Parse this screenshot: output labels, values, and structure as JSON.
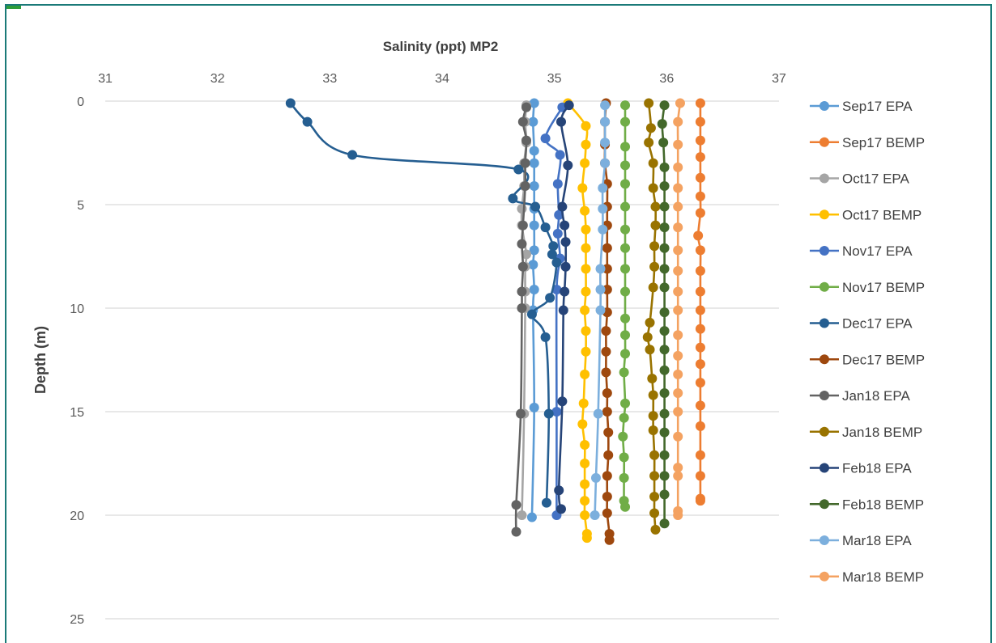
{
  "chart_data": {
    "type": "line",
    "title": "Salinity (ppt) MP2",
    "xlabel": "",
    "ylabel": "Depth (m)",
    "xlim": [
      31,
      37
    ],
    "ylim": [
      0,
      25
    ],
    "y_inverted": true,
    "x_axis_position": "top",
    "x_ticks": [
      "31",
      "32",
      "33",
      "34",
      "35",
      "36",
      "37"
    ],
    "y_ticks": [
      "0",
      "5",
      "10",
      "15",
      "20",
      "25"
    ],
    "grid": "horizontal",
    "legend_position": "right",
    "series": [
      {
        "name": "Sep17 EPA",
        "color": "#5b9bd5",
        "points": [
          [
            34.82,
            0.1
          ],
          [
            34.81,
            1.0
          ],
          [
            34.82,
            2.4
          ],
          [
            34.82,
            3.0
          ],
          [
            34.82,
            4.1
          ],
          [
            34.82,
            5.2
          ],
          [
            34.82,
            6.0
          ],
          [
            34.82,
            7.2
          ],
          [
            34.81,
            7.9
          ],
          [
            34.82,
            9.1
          ],
          [
            34.81,
            10.1
          ],
          [
            34.82,
            14.8
          ],
          [
            34.8,
            20.1
          ]
        ]
      },
      {
        "name": "Sep17 BEMP",
        "color": "#ed7d31",
        "points": [
          [
            36.3,
            0.1
          ],
          [
            36.3,
            1.0
          ],
          [
            36.3,
            1.9
          ],
          [
            36.3,
            2.7
          ],
          [
            36.3,
            3.7
          ],
          [
            36.3,
            4.6
          ],
          [
            36.3,
            5.4
          ],
          [
            36.28,
            6.5
          ],
          [
            36.3,
            7.2
          ],
          [
            36.3,
            8.2
          ],
          [
            36.3,
            9.2
          ],
          [
            36.3,
            10.1
          ],
          [
            36.3,
            11.0
          ],
          [
            36.3,
            11.9
          ],
          [
            36.3,
            12.7
          ],
          [
            36.3,
            13.6
          ],
          [
            36.3,
            14.7
          ],
          [
            36.3,
            15.7
          ],
          [
            36.3,
            17.1
          ],
          [
            36.3,
            18.1
          ],
          [
            36.3,
            19.2
          ],
          [
            36.3,
            19.3
          ]
        ]
      },
      {
        "name": "Oct17 EPA",
        "color": "#a5a5a5",
        "points": [
          [
            34.75,
            0.2
          ],
          [
            34.74,
            1.0
          ],
          [
            34.75,
            2.0
          ],
          [
            34.73,
            3.0
          ],
          [
            34.73,
            4.1
          ],
          [
            34.71,
            5.2
          ],
          [
            34.71,
            6.0
          ],
          [
            34.75,
            7.4
          ],
          [
            34.74,
            8.0
          ],
          [
            34.74,
            9.2
          ],
          [
            34.74,
            10.0
          ],
          [
            34.73,
            15.1
          ],
          [
            34.71,
            20.0
          ]
        ]
      },
      {
        "name": "Oct17 BEMP",
        "color": "#ffc000",
        "points": [
          [
            35.12,
            0.1
          ],
          [
            35.28,
            1.2
          ],
          [
            35.28,
            2.1
          ],
          [
            35.27,
            3.0
          ],
          [
            35.25,
            4.2
          ],
          [
            35.27,
            5.3
          ],
          [
            35.28,
            6.2
          ],
          [
            35.28,
            7.1
          ],
          [
            35.28,
            8.1
          ],
          [
            35.28,
            9.2
          ],
          [
            35.27,
            10.1
          ],
          [
            35.28,
            11.1
          ],
          [
            35.28,
            12.1
          ],
          [
            35.27,
            13.2
          ],
          [
            35.26,
            14.6
          ],
          [
            35.25,
            15.6
          ],
          [
            35.27,
            16.6
          ],
          [
            35.27,
            17.5
          ],
          [
            35.27,
            18.5
          ],
          [
            35.27,
            19.3
          ],
          [
            35.27,
            20.0
          ],
          [
            35.29,
            20.9
          ],
          [
            35.29,
            21.1
          ]
        ]
      },
      {
        "name": "Nov17 EPA",
        "color": "#4472c4",
        "points": [
          [
            35.07,
            0.3
          ],
          [
            34.92,
            1.8
          ],
          [
            35.05,
            2.6
          ],
          [
            35.03,
            4.0
          ],
          [
            35.04,
            5.5
          ],
          [
            35.03,
            6.4
          ],
          [
            35.05,
            7.6
          ],
          [
            35.02,
            9.1
          ],
          [
            35.02,
            15.0
          ],
          [
            35.02,
            20.0
          ]
        ]
      },
      {
        "name": "Nov17 BEMP",
        "color": "#70ad47",
        "points": [
          [
            35.63,
            0.2
          ],
          [
            35.63,
            1.0
          ],
          [
            35.63,
            2.2
          ],
          [
            35.63,
            3.1
          ],
          [
            35.63,
            4.0
          ],
          [
            35.63,
            5.1
          ],
          [
            35.63,
            6.2
          ],
          [
            35.63,
            7.1
          ],
          [
            35.63,
            8.1
          ],
          [
            35.63,
            9.2
          ],
          [
            35.63,
            10.5
          ],
          [
            35.63,
            11.3
          ],
          [
            35.63,
            12.2
          ],
          [
            35.62,
            13.1
          ],
          [
            35.63,
            14.6
          ],
          [
            35.62,
            15.3
          ],
          [
            35.61,
            16.2
          ],
          [
            35.62,
            17.2
          ],
          [
            35.62,
            18.2
          ],
          [
            35.62,
            19.3
          ],
          [
            35.63,
            19.6
          ]
        ]
      },
      {
        "name": "Dec17 EPA",
        "color": "#255e91",
        "points": [
          [
            32.65,
            0.1
          ],
          [
            32.8,
            1.0
          ],
          [
            33.2,
            2.6
          ],
          [
            34.68,
            3.3
          ],
          [
            34.63,
            4.7
          ],
          [
            34.83,
            5.1
          ],
          [
            34.92,
            6.1
          ],
          [
            34.99,
            7.0
          ],
          [
            34.98,
            7.4
          ],
          [
            35.02,
            7.8
          ],
          [
            34.96,
            9.5
          ],
          [
            34.8,
            10.3
          ],
          [
            34.92,
            11.4
          ],
          [
            34.95,
            15.1
          ],
          [
            34.93,
            19.4
          ]
        ]
      },
      {
        "name": "Dec17 BEMP",
        "color": "#9e480e",
        "points": [
          [
            35.46,
            0.1
          ],
          [
            35.45,
            1.0
          ],
          [
            35.45,
            2.1
          ],
          [
            35.45,
            3.0
          ],
          [
            35.47,
            4.0
          ],
          [
            35.47,
            5.1
          ],
          [
            35.47,
            6.0
          ],
          [
            35.47,
            7.1
          ],
          [
            35.47,
            8.1
          ],
          [
            35.47,
            9.1
          ],
          [
            35.47,
            10.2
          ],
          [
            35.46,
            11.1
          ],
          [
            35.46,
            12.1
          ],
          [
            35.46,
            13.1
          ],
          [
            35.47,
            14.1
          ],
          [
            35.47,
            15.0
          ],
          [
            35.48,
            16.0
          ],
          [
            35.48,
            17.1
          ],
          [
            35.47,
            18.1
          ],
          [
            35.47,
            19.1
          ],
          [
            35.47,
            19.9
          ],
          [
            35.49,
            20.9
          ],
          [
            35.49,
            21.2
          ]
        ]
      },
      {
        "name": "Jan18 EPA",
        "color": "#636363",
        "points": [
          [
            34.75,
            0.3
          ],
          [
            34.72,
            1.0
          ],
          [
            34.75,
            1.9
          ],
          [
            34.74,
            3.0
          ],
          [
            34.74,
            4.1
          ],
          [
            34.72,
            6.0
          ],
          [
            34.71,
            6.9
          ],
          [
            34.72,
            8.0
          ],
          [
            34.71,
            9.2
          ],
          [
            34.71,
            10.0
          ],
          [
            34.7,
            15.1
          ],
          [
            34.66,
            19.5
          ],
          [
            34.66,
            20.8
          ]
        ]
      },
      {
        "name": "Jan18 BEMP",
        "color": "#997300",
        "points": [
          [
            35.84,
            0.1
          ],
          [
            35.86,
            1.3
          ],
          [
            35.84,
            2.0
          ],
          [
            35.88,
            3.0
          ],
          [
            35.88,
            4.2
          ],
          [
            35.9,
            5.1
          ],
          [
            35.9,
            6.0
          ],
          [
            35.89,
            7.0
          ],
          [
            35.89,
            8.0
          ],
          [
            35.88,
            9.0
          ],
          [
            35.85,
            10.7
          ],
          [
            35.83,
            11.4
          ],
          [
            35.85,
            12.0
          ],
          [
            35.87,
            13.4
          ],
          [
            35.88,
            14.2
          ],
          [
            35.88,
            15.2
          ],
          [
            35.88,
            15.9
          ],
          [
            35.89,
            17.1
          ],
          [
            35.89,
            18.1
          ],
          [
            35.89,
            19.1
          ],
          [
            35.89,
            19.9
          ],
          [
            35.9,
            20.7
          ]
        ]
      },
      {
        "name": "Feb18 EPA",
        "color": "#264478",
        "points": [
          [
            35.13,
            0.2
          ],
          [
            35.06,
            1.0
          ],
          [
            35.12,
            3.1
          ],
          [
            35.07,
            5.1
          ],
          [
            35.09,
            6.0
          ],
          [
            35.1,
            6.8
          ],
          [
            35.1,
            8.0
          ],
          [
            35.09,
            9.2
          ],
          [
            35.08,
            10.1
          ],
          [
            35.07,
            14.5
          ],
          [
            35.04,
            18.8
          ],
          [
            35.06,
            19.7
          ]
        ]
      },
      {
        "name": "Feb18 BEMP",
        "color": "#43682b",
        "points": [
          [
            35.98,
            0.2
          ],
          [
            35.96,
            1.1
          ],
          [
            35.97,
            2.0
          ],
          [
            35.98,
            3.2
          ],
          [
            35.98,
            4.1
          ],
          [
            35.98,
            5.1
          ],
          [
            35.98,
            6.1
          ],
          [
            35.98,
            7.1
          ],
          [
            35.98,
            8.1
          ],
          [
            35.98,
            9.0
          ],
          [
            35.98,
            10.2
          ],
          [
            35.98,
            11.1
          ],
          [
            35.98,
            12.0
          ],
          [
            35.98,
            13.0
          ],
          [
            35.98,
            14.1
          ],
          [
            35.98,
            15.1
          ],
          [
            35.98,
            16.0
          ],
          [
            35.98,
            17.1
          ],
          [
            35.98,
            18.1
          ],
          [
            35.98,
            19.0
          ],
          [
            35.98,
            20.4
          ]
        ]
      },
      {
        "name": "Mar18 EPA",
        "color": "#7cafdd",
        "points": [
          [
            35.45,
            0.2
          ],
          [
            35.45,
            1.0
          ],
          [
            35.45,
            2.0
          ],
          [
            35.45,
            3.0
          ],
          [
            35.43,
            4.2
          ],
          [
            35.43,
            5.2
          ],
          [
            35.43,
            6.2
          ],
          [
            35.41,
            8.1
          ],
          [
            35.41,
            9.1
          ],
          [
            35.41,
            10.1
          ],
          [
            35.39,
            15.1
          ],
          [
            35.37,
            18.2
          ],
          [
            35.36,
            20.0
          ]
        ]
      },
      {
        "name": "Mar18 BEMP",
        "color": "#f4a261",
        "points": [
          [
            36.12,
            0.1
          ],
          [
            36.1,
            1.0
          ],
          [
            36.1,
            2.1
          ],
          [
            36.1,
            3.2
          ],
          [
            36.1,
            4.2
          ],
          [
            36.1,
            5.1
          ],
          [
            36.1,
            6.1
          ],
          [
            36.1,
            7.2
          ],
          [
            36.1,
            8.2
          ],
          [
            36.1,
            9.2
          ],
          [
            36.1,
            10.1
          ],
          [
            36.1,
            11.3
          ],
          [
            36.1,
            12.3
          ],
          [
            36.1,
            13.2
          ],
          [
            36.1,
            14.1
          ],
          [
            36.1,
            15.0
          ],
          [
            36.1,
            16.2
          ],
          [
            36.1,
            17.7
          ],
          [
            36.1,
            18.1
          ],
          [
            36.1,
            19.8
          ],
          [
            36.1,
            20.0
          ]
        ]
      }
    ]
  }
}
